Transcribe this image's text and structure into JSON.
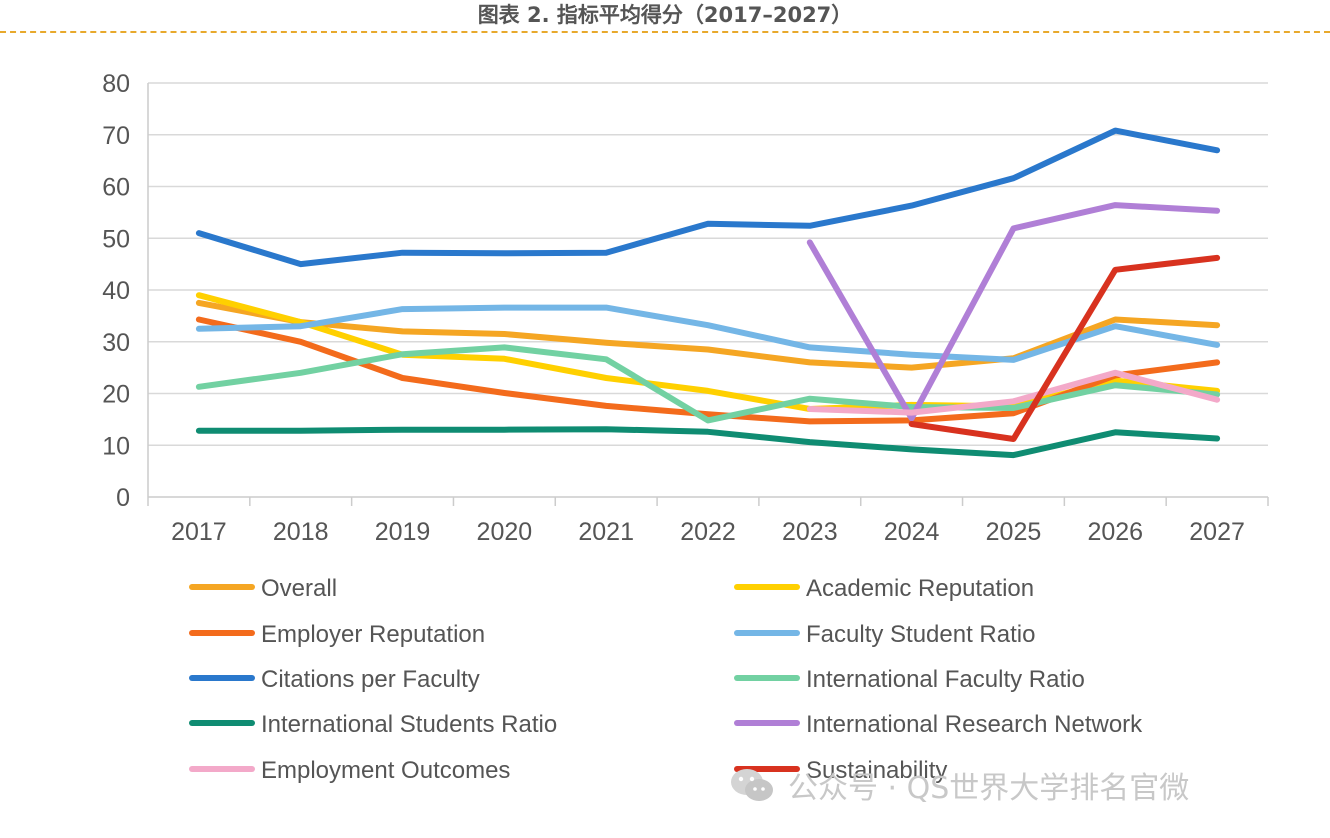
{
  "chart_data": {
    "type": "line",
    "title": "图表 2. 指标平均得分（2017–2027）",
    "x": [
      "2017",
      "2018",
      "2019",
      "2020",
      "2021",
      "2022",
      "2023",
      "2024",
      "2025",
      "2026",
      "2027"
    ],
    "ylim": [
      0,
      80
    ],
    "yticks": [
      "0",
      "10",
      "20",
      "30",
      "40",
      "50",
      "60",
      "70",
      "80"
    ],
    "grid": true,
    "legend_position": "bottom",
    "series": [
      {
        "name": "Overall",
        "color": "#f5a623",
        "values": [
          37.5,
          33.8,
          32.0,
          31.5,
          29.8,
          28.5,
          26.0,
          25.0,
          26.8,
          34.3,
          33.2
        ]
      },
      {
        "name": "Academic Reputation",
        "color": "#ffd000",
        "values": [
          39.0,
          33.8,
          27.5,
          26.7,
          23.0,
          20.5,
          17.0,
          17.8,
          17.5,
          22.5,
          20.5
        ]
      },
      {
        "name": "Employer Reputation",
        "color": "#f36b1c",
        "values": [
          34.3,
          30.0,
          23.0,
          20.1,
          17.6,
          16.0,
          14.6,
          14.8,
          16.2,
          23.5,
          26.0
        ]
      },
      {
        "name": "Faculty Student Ratio",
        "color": "#74b6e6",
        "values": [
          32.5,
          33.0,
          36.3,
          36.6,
          36.6,
          33.2,
          28.9,
          27.5,
          26.5,
          33.0,
          29.4
        ]
      },
      {
        "name": "Citations per Faculty",
        "color": "#2a78cc",
        "values": [
          51.0,
          45.0,
          47.2,
          47.1,
          47.2,
          52.8,
          52.4,
          56.3,
          61.6,
          70.8,
          67.0
        ]
      },
      {
        "name": "International Faculty Ratio",
        "color": "#72d1a2",
        "values": [
          21.3,
          24.0,
          27.6,
          28.9,
          26.6,
          14.8,
          19.0,
          17.4,
          17.2,
          21.6,
          19.8
        ]
      },
      {
        "name": "International Students Ratio",
        "color": "#0f8c72",
        "values": [
          12.8,
          12.8,
          13.0,
          13.0,
          13.1,
          12.6,
          10.6,
          9.2,
          8.1,
          12.5,
          11.3
        ]
      },
      {
        "name": "International Research Network",
        "color": "#b07fd6",
        "values": [
          null,
          null,
          null,
          null,
          null,
          null,
          49.2,
          15.2,
          51.9,
          56.4,
          55.3
        ]
      },
      {
        "name": "Employment Outcomes",
        "color": "#f3a9c9",
        "values": [
          null,
          null,
          null,
          null,
          null,
          null,
          17.0,
          16.3,
          18.5,
          24.0,
          18.8
        ]
      },
      {
        "name": "Sustainability",
        "color": "#d8321f",
        "values": [
          null,
          null,
          null,
          null,
          null,
          null,
          null,
          14.1,
          11.2,
          43.9,
          46.2
        ]
      }
    ]
  },
  "watermark": {
    "text": "公众号 · QS世界大学排名官微",
    "icon": "wechat-icon"
  }
}
